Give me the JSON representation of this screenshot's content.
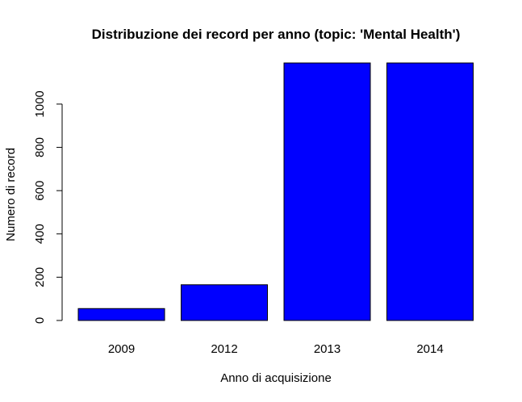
{
  "chart_data": {
    "type": "bar",
    "title": "Distribuzione dei record per anno (topic: 'Mental Health')",
    "xlabel": "Anno di acquisizione",
    "ylabel": "Numero di record",
    "categories": [
      "2009",
      "2012",
      "2013",
      "2014"
    ],
    "values": [
      55,
      165,
      1190,
      1190
    ],
    "ylim": [
      0,
      1190
    ],
    "yticks": [
      0,
      200,
      400,
      600,
      800,
      1000
    ],
    "grid": false,
    "legend": "none",
    "bar_color": "#0000FF",
    "bar_border_color": "#000000"
  }
}
